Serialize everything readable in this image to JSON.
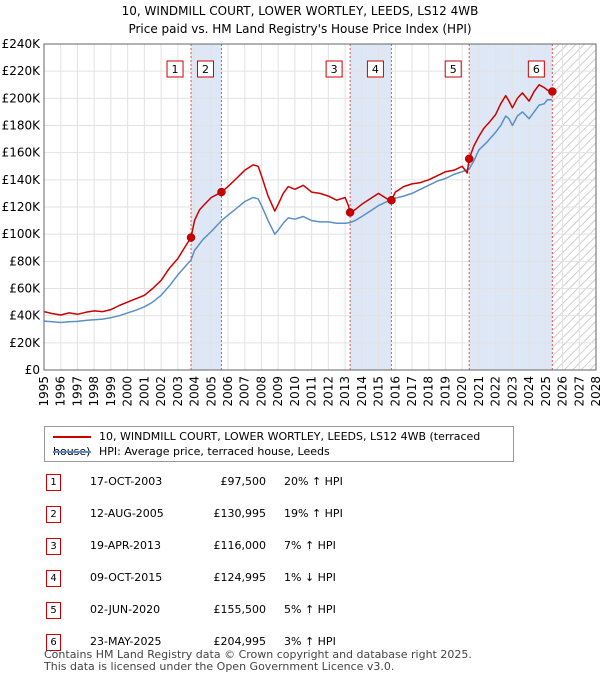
{
  "title": {
    "line1": "10, WINDMILL COURT, LOWER WORTLEY, LEEDS, LS12 4WB",
    "line2": "Price paid vs. HM Land Registry's House Price Index (HPI)"
  },
  "colors": {
    "property": "#cc0000",
    "hpi": "#5b8fc9",
    "shade": "#dde7f5",
    "event_line": "#e05555",
    "grid": "#e2e2e2"
  },
  "legend": {
    "property_label": "10, WINDMILL COURT, LOWER WORTLEY, LEEDS, LS12 4WB (terraced house)",
    "hpi_label": "HPI: Average price, terraced house, Leeds"
  },
  "events": [
    {
      "num": "1",
      "date": "17-OCT-2003",
      "price": "£97,500",
      "hpi": "20% ↑ HPI"
    },
    {
      "num": "2",
      "date": "12-AUG-2005",
      "price": "£130,995",
      "hpi": "19% ↑ HPI"
    },
    {
      "num": "3",
      "date": "19-APR-2013",
      "price": "£116,000",
      "hpi": "7% ↑ HPI"
    },
    {
      "num": "4",
      "date": "09-OCT-2015",
      "price": "£124,995",
      "hpi": "1% ↓ HPI"
    },
    {
      "num": "5",
      "date": "02-JUN-2020",
      "price": "£155,500",
      "hpi": "5% ↑ HPI"
    },
    {
      "num": "6",
      "date": "23-MAY-2025",
      "price": "£204,995",
      "hpi": "3% ↑ HPI"
    }
  ],
  "footer": {
    "line1": "Contains HM Land Registry data © Crown copyright and database right 2025.",
    "line2": "This data is licensed under the Open Government Licence v3.0."
  },
  "chart_data": {
    "type": "line",
    "xlim": [
      1995,
      2028
    ],
    "ylim": [
      0,
      240000
    ],
    "x_ticks": [
      "1995",
      "1996",
      "1997",
      "1998",
      "1999",
      "2000",
      "2001",
      "2002",
      "2003",
      "2004",
      "2005",
      "2006",
      "2007",
      "2008",
      "2009",
      "2010",
      "2011",
      "2012",
      "2013",
      "2014",
      "2015",
      "2016",
      "2017",
      "2018",
      "2019",
      "2020",
      "2021",
      "2022",
      "2023",
      "2024",
      "2025",
      "2026",
      "2027",
      "2028"
    ],
    "y_ticks": [
      {
        "value": 0,
        "label": "£0"
      },
      {
        "value": 20000,
        "label": "£20K"
      },
      {
        "value": 40000,
        "label": "£40K"
      },
      {
        "value": 60000,
        "label": "£60K"
      },
      {
        "value": 80000,
        "label": "£80K"
      },
      {
        "value": 100000,
        "label": "£100K"
      },
      {
        "value": 120000,
        "label": "£120K"
      },
      {
        "value": 140000,
        "label": "£140K"
      },
      {
        "value": 160000,
        "label": "£160K"
      },
      {
        "value": 180000,
        "label": "£180K"
      },
      {
        "value": 200000,
        "label": "£200K"
      },
      {
        "value": 220000,
        "label": "£220K"
      },
      {
        "value": 240000,
        "label": "£240K"
      }
    ],
    "shaded_ranges": [
      [
        2003.79,
        2005.61
      ],
      [
        2013.3,
        2015.77
      ],
      [
        2020.42,
        2025.39
      ]
    ],
    "hatched_from": 2025.39,
    "events": [
      {
        "label": "1",
        "x": 2003.79,
        "y": 97500
      },
      {
        "label": "2",
        "x": 2005.61,
        "y": 130995
      },
      {
        "label": "3",
        "x": 2013.3,
        "y": 116000
      },
      {
        "label": "4",
        "x": 2015.77,
        "y": 124995
      },
      {
        "label": "5",
        "x": 2020.42,
        "y": 155500
      },
      {
        "label": "6",
        "x": 2025.39,
        "y": 204995
      }
    ],
    "series": [
      {
        "name": "10, WINDMILL COURT, LOWER WORTLEY, LEEDS, LS12 4WB (terraced house)",
        "x": [
          1995.0,
          1995.5,
          1996.0,
          1996.5,
          1997.0,
          1997.5,
          1998.0,
          1998.5,
          1999.0,
          1999.5,
          2000.0,
          2000.5,
          2001.0,
          2001.5,
          2002.0,
          2002.5,
          2003.0,
          2003.5,
          2003.79,
          2004.0,
          2004.3,
          2004.6,
          2005.0,
          2005.3,
          2005.61,
          2006.0,
          2006.5,
          2007.0,
          2007.5,
          2007.8,
          2008.0,
          2008.4,
          2008.8,
          2009.0,
          2009.3,
          2009.6,
          2010.0,
          2010.5,
          2011.0,
          2011.5,
          2012.0,
          2012.5,
          2013.0,
          2013.2,
          2013.3,
          2013.6,
          2014.0,
          2014.5,
          2015.0,
          2015.5,
          2015.77,
          2016.0,
          2016.5,
          2017.0,
          2017.5,
          2018.0,
          2018.5,
          2019.0,
          2019.5,
          2020.0,
          2020.3,
          2020.42,
          2020.7,
          2021.0,
          2021.3,
          2021.6,
          2022.0,
          2022.3,
          2022.6,
          2022.8,
          2023.0,
          2023.3,
          2023.6,
          2024.0,
          2024.3,
          2024.6,
          2024.9,
          2025.1,
          2025.39
        ],
        "values": [
          43000,
          41500,
          40500,
          42000,
          41000,
          42500,
          43500,
          43000,
          44500,
          47500,
          50000,
          52500,
          55000,
          60000,
          66000,
          75000,
          82000,
          92000,
          97500,
          110000,
          118000,
          122000,
          127000,
          129000,
          130995,
          135000,
          141000,
          147000,
          151000,
          150000,
          143000,
          128000,
          117000,
          122000,
          130000,
          135000,
          133000,
          136000,
          131000,
          130000,
          128000,
          125000,
          127000,
          121000,
          116000,
          118000,
          122000,
          126000,
          130000,
          126000,
          124995,
          131000,
          135000,
          137000,
          138000,
          140000,
          143000,
          146000,
          147000,
          150000,
          145000,
          155500,
          165000,
          172000,
          178000,
          182000,
          188000,
          196000,
          202000,
          198000,
          193000,
          200000,
          204000,
          198000,
          205000,
          210000,
          208000,
          206000,
          204995
        ]
      },
      {
        "name": "HPI: Average price, terraced house, Leeds",
        "x": [
          1995.0,
          1995.5,
          1996.0,
          1996.5,
          1997.0,
          1997.5,
          1998.0,
          1998.5,
          1999.0,
          1999.5,
          2000.0,
          2000.5,
          2001.0,
          2001.5,
          2002.0,
          2002.5,
          2003.0,
          2003.5,
          2003.79,
          2004.0,
          2004.5,
          2005.0,
          2005.61,
          2006.0,
          2006.5,
          2007.0,
          2007.5,
          2007.8,
          2008.0,
          2008.4,
          2008.8,
          2009.0,
          2009.3,
          2009.6,
          2010.0,
          2010.5,
          2011.0,
          2011.5,
          2012.0,
          2012.5,
          2013.0,
          2013.3,
          2013.6,
          2014.0,
          2014.5,
          2015.0,
          2015.5,
          2015.77,
          2016.0,
          2016.5,
          2017.0,
          2017.5,
          2018.0,
          2018.5,
          2019.0,
          2019.5,
          2020.0,
          2020.42,
          2020.7,
          2021.0,
          2021.5,
          2022.0,
          2022.3,
          2022.6,
          2022.8,
          2023.0,
          2023.3,
          2023.6,
          2024.0,
          2024.3,
          2024.6,
          2024.9,
          2025.1,
          2025.39
        ],
        "values": [
          36000,
          35500,
          35000,
          35500,
          35800,
          36500,
          37000,
          37500,
          38500,
          40000,
          42000,
          44000,
          46500,
          50000,
          55000,
          62000,
          70000,
          77000,
          81000,
          88000,
          96000,
          102000,
          110000,
          114000,
          119000,
          124000,
          127000,
          126000,
          121000,
          110000,
          100000,
          103000,
          108000,
          112000,
          111000,
          113000,
          110000,
          109000,
          109000,
          108000,
          108000,
          108500,
          110000,
          113000,
          117000,
          121000,
          124000,
          126000,
          126500,
          128000,
          130000,
          133000,
          136000,
          139000,
          141000,
          144000,
          146000,
          148000,
          154000,
          162000,
          168000,
          175000,
          180000,
          187000,
          185000,
          180000,
          187000,
          190000,
          185000,
          190000,
          195000,
          196000,
          199000,
          199000
        ]
      }
    ]
  }
}
